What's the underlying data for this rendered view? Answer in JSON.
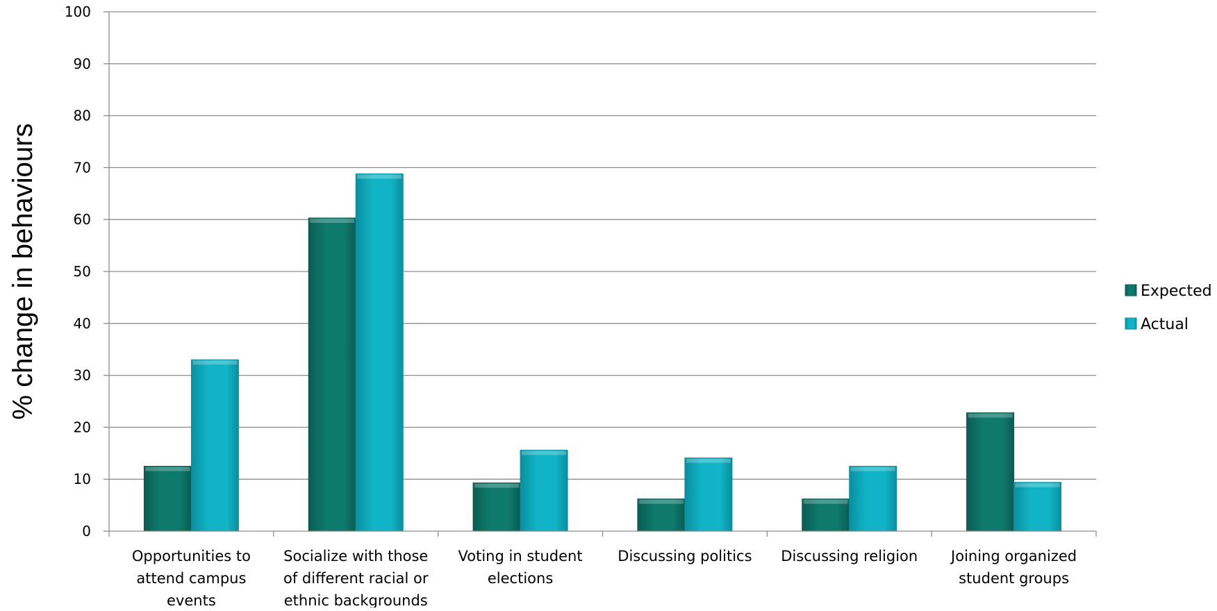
{
  "chart_data": {
    "type": "bar",
    "title": "",
    "xlabel": "",
    "ylabel": "% change in behaviours",
    "ylim": [
      0,
      100
    ],
    "yticks": [
      0,
      10,
      20,
      30,
      40,
      50,
      60,
      70,
      80,
      90,
      100
    ],
    "grid": true,
    "legend_position": "right",
    "categories": [
      [
        "Opportunities to",
        "attend campus",
        "events"
      ],
      [
        "Socialize with those",
        "of different racial or",
        "ethnic backgrounds"
      ],
      [
        "Voting in student",
        "elections"
      ],
      [
        "Discussing politics"
      ],
      [
        "Discussing religion"
      ],
      [
        "Joining organized",
        "student groups"
      ]
    ],
    "series": [
      {
        "name": "Expected",
        "color": "#0e7a6c",
        "color_dark": "#0a5c52",
        "values": [
          12.5,
          60.3,
          9.3,
          6.2,
          6.2,
          22.8
        ]
      },
      {
        "name": "Actual",
        "color": "#10b4c6",
        "color_dark": "#0a8fa0",
        "values": [
          33.0,
          68.8,
          15.6,
          14.1,
          12.5,
          9.4
        ]
      }
    ]
  }
}
